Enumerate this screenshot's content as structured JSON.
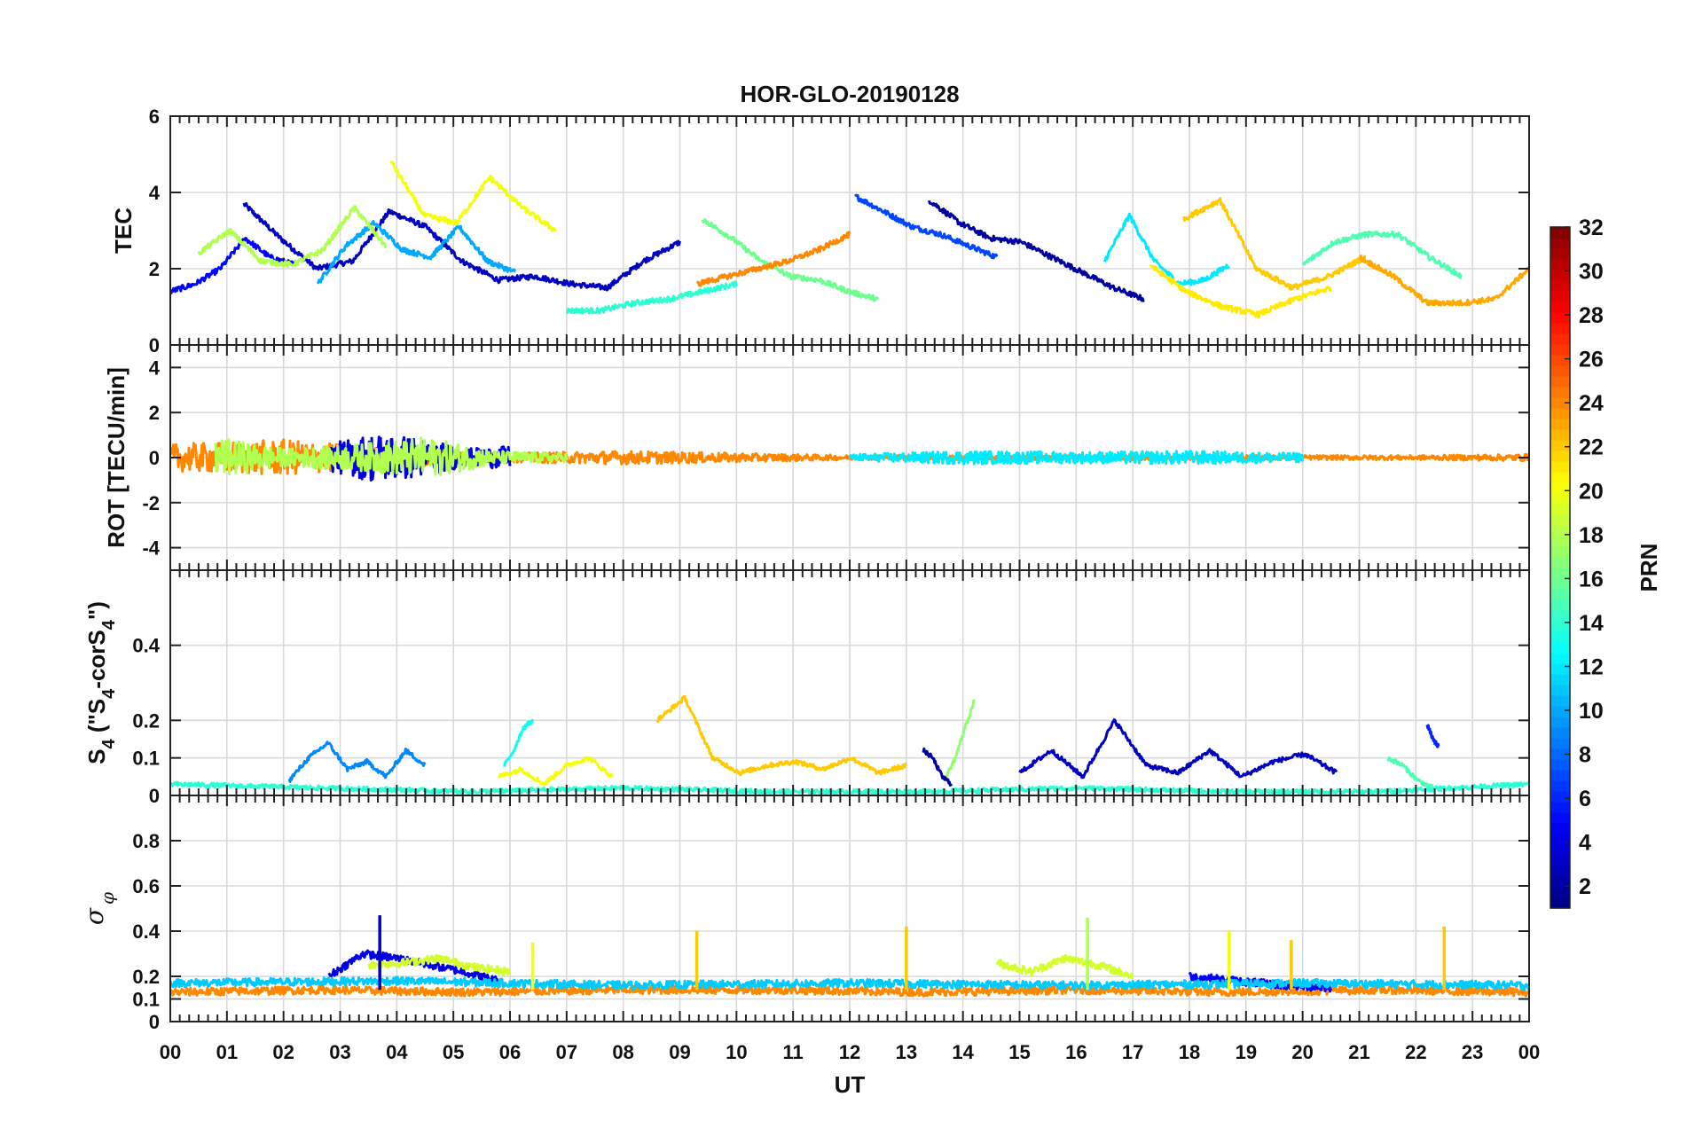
{
  "chart_data": {
    "type": "line",
    "title": "HOR-GLO-20190128",
    "xlabel": "UT",
    "x_range_hours": [
      0,
      24
    ],
    "x_tick_labels": [
      "00",
      "01",
      "02",
      "03",
      "04",
      "05",
      "06",
      "07",
      "08",
      "09",
      "10",
      "11",
      "12",
      "13",
      "14",
      "15",
      "16",
      "17",
      "18",
      "19",
      "20",
      "21",
      "22",
      "23",
      "00"
    ],
    "grid": true,
    "colorbar": {
      "label": "PRN",
      "range": [
        1,
        32
      ],
      "tick_labels": [
        "2",
        "4",
        "6",
        "8",
        "10",
        "12",
        "14",
        "16",
        "18",
        "20",
        "22",
        "24",
        "26",
        "28",
        "30",
        "32"
      ]
    },
    "panels": [
      {
        "name": "tec",
        "ylabel": "TEC",
        "ylim": [
          0,
          6
        ],
        "yticks": [
          "0",
          "2",
          "4",
          "6"
        ],
        "series": [
          {
            "prn": 3,
            "start": 1.3,
            "end": 9.0,
            "values": [
              3.7,
              2.8,
              2.0,
              2.2,
              3.5,
              3.1,
              2.2,
              1.7,
              1.8,
              1.6,
              1.5,
              2.2,
              2.7
            ]
          },
          {
            "prn": 5,
            "start": 0.0,
            "end": 2.2,
            "values": [
              1.4,
              1.6,
              2.0,
              2.8,
              2.3,
              2.1
            ]
          },
          {
            "prn": 7,
            "start": 12.1,
            "end": 14.6,
            "values": [
              3.9,
              3.5,
              3.1,
              2.9,
              2.6,
              2.3
            ]
          },
          {
            "prn": 2,
            "start": 13.4,
            "end": 17.2,
            "values": [
              3.8,
              3.2,
              2.8,
              2.7,
              2.3,
              1.9,
              1.5,
              1.2
            ]
          },
          {
            "prn": 10,
            "start": 2.6,
            "end": 6.1,
            "values": [
              1.6,
              2.6,
              3.2,
              2.5,
              2.3,
              3.1,
              2.2,
              1.9
            ]
          },
          {
            "prn": 12,
            "start": 16.5,
            "end": 18.7,
            "values": [
              2.2,
              3.4,
              2.2,
              1.6,
              1.7,
              2.1
            ]
          },
          {
            "prn": 14,
            "start": 7.0,
            "end": 10.0,
            "values": [
              0.9,
              0.9,
              1.1,
              1.2,
              1.4,
              1.6
            ]
          },
          {
            "prn": 16,
            "start": 9.4,
            "end": 12.5,
            "values": [
              3.3,
              2.8,
              2.2,
              1.8,
              1.7,
              1.4,
              1.2
            ]
          },
          {
            "prn": 15,
            "start": 20.0,
            "end": 22.8,
            "values": [
              2.1,
              2.7,
              2.9,
              2.9,
              2.3,
              1.8
            ]
          },
          {
            "prn": 18,
            "start": 0.5,
            "end": 3.8,
            "values": [
              2.4,
              3.0,
              2.2,
              2.1,
              2.5,
              3.6,
              2.6
            ]
          },
          {
            "prn": 20,
            "start": 3.9,
            "end": 6.8,
            "values": [
              4.8,
              3.4,
              3.2,
              4.4,
              3.6,
              3.0
            ]
          },
          {
            "prn": 21,
            "start": 17.3,
            "end": 20.5,
            "values": [
              2.1,
              1.4,
              1.0,
              0.8,
              1.2,
              1.5
            ]
          },
          {
            "prn": 22,
            "start": 17.9,
            "end": 21.1,
            "values": [
              3.3,
              3.8,
              2.0,
              1.5,
              1.8,
              2.3
            ]
          },
          {
            "prn": 23,
            "start": 21.0,
            "end": 24.0,
            "values": [
              2.3,
              1.8,
              1.1,
              1.1,
              1.2,
              2.0
            ]
          },
          {
            "prn": 24,
            "start": 9.3,
            "end": 12.0,
            "values": [
              1.6,
              1.8,
              2.0,
              2.2,
              2.5,
              2.9
            ]
          }
        ]
      },
      {
        "name": "rot",
        "ylabel": "ROT [TECU/min]",
        "ylim": [
          -5,
          5
        ],
        "yticks": [
          "-4",
          "-2",
          "0",
          "2",
          "4"
        ],
        "series": [
          {
            "prn": 24,
            "start": 0.0,
            "end": 24.0,
            "amplitude": [
              0.6,
              0.8,
              0.4,
              0.2,
              0.3,
              0.2,
              0.1,
              0.1,
              0.1,
              0.1,
              0.1,
              0.1,
              0.15
            ]
          },
          {
            "prn": 4,
            "start": 2.8,
            "end": 6.0,
            "amplitude": [
              0.6,
              1.1,
              0.9,
              0.4,
              0.5
            ]
          },
          {
            "prn": 18,
            "start": 0.8,
            "end": 7.0,
            "amplitude": [
              0.9,
              0.4,
              0.6,
              0.9,
              0.3,
              0.2
            ]
          },
          {
            "prn": 12,
            "start": 12.0,
            "end": 20.0,
            "amplitude": [
              0.15,
              0.3,
              0.25,
              0.3,
              0.2
            ]
          }
        ]
      },
      {
        "name": "s4",
        "ylabel": "S4 (\"S4-corS4\")",
        "ylabel_main": "S",
        "ylabel_mid": " (\"S",
        "ylabel_mid2": "-corS",
        "ylabel_end": "\")",
        "ylabel_sub": "4",
        "ylim": [
          0,
          0.6
        ],
        "yticks": [
          "0",
          "0.1",
          "0.2",
          "0.4"
        ],
        "series": [
          {
            "prn": 9,
            "start": 2.1,
            "end": 4.5,
            "values": [
              0.04,
              0.1,
              0.14,
              0.07,
              0.09,
              0.05,
              0.12,
              0.08
            ]
          },
          {
            "prn": 20,
            "start": 5.8,
            "end": 7.8,
            "values": [
              0.05,
              0.07,
              0.03,
              0.08,
              0.1,
              0.05
            ]
          },
          {
            "prn": 22,
            "start": 8.6,
            "end": 13.0,
            "values": [
              0.2,
              0.26,
              0.1,
              0.06,
              0.08,
              0.09,
              0.07,
              0.1,
              0.06,
              0.08
            ]
          },
          {
            "prn": 13,
            "start": 5.9,
            "end": 6.4,
            "values": [
              0.08,
              0.12,
              0.18,
              0.2
            ]
          },
          {
            "prn": 17,
            "start": 13.7,
            "end": 14.2,
            "values": [
              0.05,
              0.1,
              0.18,
              0.25
            ]
          },
          {
            "prn": 2,
            "start": 13.3,
            "end": 13.8,
            "values": [
              0.12,
              0.1,
              0.05,
              0.03
            ]
          },
          {
            "prn": 3,
            "start": 15.0,
            "end": 20.6,
            "values": [
              0.06,
              0.12,
              0.05,
              0.2,
              0.08,
              0.06,
              0.12,
              0.05,
              0.09,
              0.11,
              0.06
            ]
          },
          {
            "prn": 6,
            "start": 22.2,
            "end": 22.4,
            "values": [
              0.19,
              0.15,
              0.13
            ]
          },
          {
            "prn": 15,
            "start": 21.5,
            "end": 22.3,
            "values": [
              0.1,
              0.08,
              0.04,
              0.02
            ]
          },
          {
            "prn": 14,
            "start": 0.0,
            "end": 24.0,
            "values": [
              0.03,
              0.02,
              0.01,
              0.02,
              0.01,
              0.01,
              0.02,
              0.01,
              0.01,
              0.03
            ]
          }
        ]
      },
      {
        "name": "sigma-phi",
        "ylabel": "σ_φ",
        "ylabel_main": "σ",
        "ylabel_sub": "φ",
        "ylim": [
          0,
          1
        ],
        "yticks": [
          "0",
          "0.1",
          "0.2",
          "0.4",
          "0.6",
          "0.8"
        ],
        "series": [
          {
            "prn": 24,
            "start": 0.0,
            "end": 24.0,
            "values": [
              0.13,
              0.14,
              0.13,
              0.14,
              0.14,
              0.13,
              0.14,
              0.13,
              0.14,
              0.13
            ]
          },
          {
            "prn": 4,
            "start": 2.8,
            "end": 5.8,
            "values": [
              0.2,
              0.3,
              0.28,
              0.25,
              0.22,
              0.18
            ]
          },
          {
            "prn": 19,
            "start": 3.5,
            "end": 6.0,
            "values": [
              0.25,
              0.26,
              0.28,
              0.24,
              0.22
            ]
          },
          {
            "prn": 19,
            "start": 14.6,
            "end": 17.0,
            "values": [
              0.26,
              0.22,
              0.28,
              0.25,
              0.2
            ]
          },
          {
            "prn": 5,
            "start": 18.0,
            "end": 20.5,
            "values": [
              0.2,
              0.18,
              0.16,
              0.15
            ]
          },
          {
            "prn": 11,
            "start": 0.0,
            "end": 24.0,
            "values": [
              0.17,
              0.18,
              0.16,
              0.17,
              0.16,
              0.17,
              0.16
            ]
          }
        ],
        "spikes": [
          {
            "prn": 22,
            "hour": 13.0,
            "value": 0.42
          },
          {
            "prn": 22,
            "hour": 9.3,
            "value": 0.4
          },
          {
            "prn": 20,
            "hour": 6.4,
            "value": 0.35
          },
          {
            "prn": 20,
            "hour": 18.7,
            "value": 0.4
          },
          {
            "prn": 22,
            "hour": 19.8,
            "value": 0.36
          },
          {
            "prn": 22,
            "hour": 22.5,
            "value": 0.42
          },
          {
            "prn": 3,
            "hour": 3.7,
            "value": 0.47
          },
          {
            "prn": 18,
            "hour": 16.2,
            "value": 0.46
          }
        ]
      }
    ]
  }
}
